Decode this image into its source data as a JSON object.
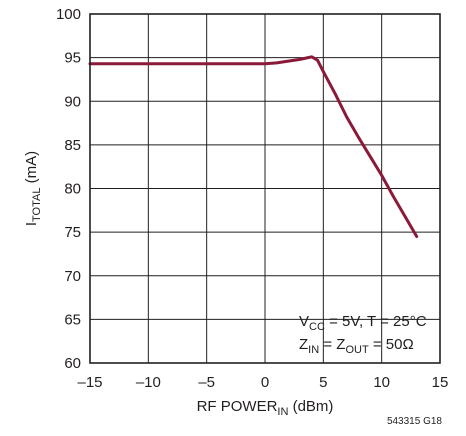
{
  "chart_data": {
    "type": "line",
    "xlabel": {
      "main": "RF POWER",
      "sub": "IN",
      "unit": " (dBm)"
    },
    "ylabel": {
      "main": "I",
      "sub": "TOTAL",
      "unit": " (mA)"
    },
    "xlim": [
      -15,
      15
    ],
    "ylim": [
      60,
      100
    ],
    "x_ticks": [
      "–15",
      "–10",
      "–5",
      "0",
      "5",
      "10",
      "15"
    ],
    "y_ticks": [
      "60",
      "65",
      "70",
      "75",
      "80",
      "85",
      "90",
      "95",
      "100"
    ],
    "grid": true,
    "series": [
      {
        "color": "#8b1a3a",
        "x": [
          -15,
          -10,
          -5,
          -3,
          0,
          1,
          2,
          3,
          3.7,
          4.0,
          4.5,
          5.0,
          6.0,
          7.0,
          8.0,
          9.0,
          10.0,
          11.0,
          12.0,
          13.0
        ],
        "y": [
          94.3,
          94.3,
          94.3,
          94.3,
          94.3,
          94.4,
          94.6,
          94.8,
          95.0,
          95.1,
          94.7,
          93.4,
          90.9,
          88.2,
          85.9,
          83.7,
          81.5,
          79.1,
          76.8,
          74.5
        ]
      }
    ],
    "annotations": [
      {
        "parts": [
          [
            "V",
            ""
          ],
          [
            "CC",
            "sub"
          ],
          [
            " = 5V, T = 25°C",
            ""
          ]
        ]
      },
      {
        "parts": [
          [
            "Z",
            ""
          ],
          [
            "IN",
            "sub"
          ],
          [
            " = Z",
            ""
          ],
          [
            "OUT",
            "sub"
          ],
          [
            " = 50Ω",
            ""
          ]
        ]
      }
    ],
    "figure_id": "543315 G18"
  }
}
